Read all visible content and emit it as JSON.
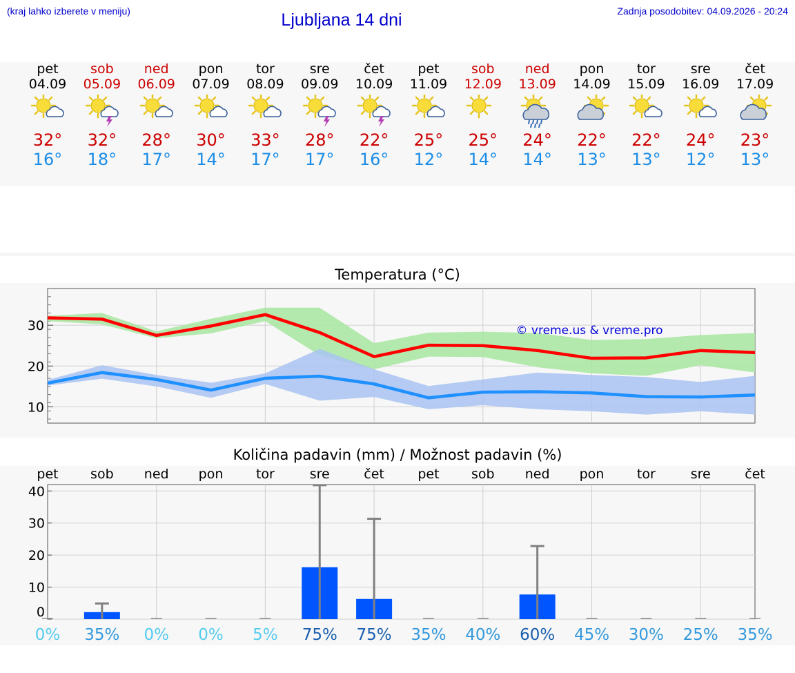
{
  "header": {
    "menu_hint": "(kraj lahko izberete v meniju)",
    "title": "Ljubljana 14 dni",
    "last_update": "Zadnja posodobitev: 04.09.2026 - 20:24"
  },
  "colors": {
    "weekday": "#000000",
    "weekend": "#cc0000",
    "tmax": "#cc0000",
    "tmin": "#1a8ce6",
    "max_line": "#ff0000",
    "min_line": "#1e90ff",
    "max_band": "#a8e6a0",
    "min_band": "#a9c3f2",
    "precip_bar": "#0055ff",
    "error_bar": "#808080"
  },
  "days": [
    {
      "name": "pet",
      "date": "04.09",
      "weekend": false,
      "icon": "sun-cloud-icon",
      "tmax": "32°",
      "tmin": "16°"
    },
    {
      "name": "sob",
      "date": "05.09",
      "weekend": true,
      "icon": "sun-cloud-lightning-icon",
      "tmax": "32°",
      "tmin": "18°"
    },
    {
      "name": "ned",
      "date": "06.09",
      "weekend": true,
      "icon": "sun-cloud-icon",
      "tmax": "28°",
      "tmin": "17°"
    },
    {
      "name": "pon",
      "date": "07.09",
      "weekend": false,
      "icon": "sun-cloud-icon",
      "tmax": "30°",
      "tmin": "14°"
    },
    {
      "name": "tor",
      "date": "08.09",
      "weekend": false,
      "icon": "sun-cloud-icon",
      "tmax": "33°",
      "tmin": "17°"
    },
    {
      "name": "sre",
      "date": "09.09",
      "weekend": false,
      "icon": "sun-cloud-lightning-icon",
      "tmax": "28°",
      "tmin": "17°"
    },
    {
      "name": "čet",
      "date": "10.09",
      "weekend": false,
      "icon": "sun-cloud-lightning-icon",
      "tmax": "22°",
      "tmin": "16°"
    },
    {
      "name": "pet",
      "date": "11.09",
      "weekend": false,
      "icon": "sun-cloud-icon",
      "tmax": "25°",
      "tmin": "12°"
    },
    {
      "name": "sob",
      "date": "12.09",
      "weekend": true,
      "icon": "sun-icon",
      "tmax": "25°",
      "tmin": "14°"
    },
    {
      "name": "ned",
      "date": "13.09",
      "weekend": true,
      "icon": "sun-cloud-rain-icon",
      "tmax": "24°",
      "tmin": "14°"
    },
    {
      "name": "pon",
      "date": "14.09",
      "weekend": false,
      "icon": "cloud-sun-icon",
      "tmax": "22°",
      "tmin": "13°"
    },
    {
      "name": "tor",
      "date": "15.09",
      "weekend": false,
      "icon": "sun-cloud-icon",
      "tmax": "22°",
      "tmin": "13°"
    },
    {
      "name": "sre",
      "date": "16.09",
      "weekend": false,
      "icon": "sun-cloud-icon",
      "tmax": "24°",
      "tmin": "12°"
    },
    {
      "name": "čet",
      "date": "17.09",
      "weekend": false,
      "icon": "cloud-sun-icon",
      "tmax": "23°",
      "tmin": "13°"
    }
  ],
  "chart_data": [
    {
      "type": "line",
      "title": "Temperatura (°C)",
      "watermark": "© vreme.us & vreme.pro",
      "x": [
        "04.09",
        "05.09",
        "06.09",
        "07.09",
        "08.09",
        "09.09",
        "10.09",
        "11.09",
        "12.09",
        "13.09",
        "14.09",
        "15.09",
        "16.09",
        "17.09"
      ],
      "ylim": [
        6,
        39
      ],
      "yticks": [
        10,
        20,
        30
      ],
      "grid": true,
      "series": [
        {
          "values": [
            31.8,
            31.5,
            27.5,
            29.8,
            32.6,
            28.2,
            22.3,
            25.1,
            25.0,
            23.8,
            21.9,
            22.0,
            23.8,
            23.3
          ]
        },
        {
          "values": [
            15.8,
            18.4,
            16.7,
            14.1,
            17.0,
            17.5,
            15.6,
            12.2,
            13.6,
            13.7,
            13.4,
            12.5,
            12.4,
            12.9
          ]
        }
      ],
      "bands": [
        {
          "low": [
            31.0,
            30.2,
            26.8,
            28.0,
            31.0,
            22.6,
            19.2,
            22.3,
            22.2,
            19.7,
            18.2,
            17.6,
            20.2,
            18.4
          ],
          "high": [
            32.3,
            33.0,
            28.5,
            31.6,
            34.3,
            34.3,
            25.6,
            28.2,
            28.4,
            28.1,
            26.4,
            26.6,
            27.6,
            28.1
          ]
        },
        {
          "low": [
            15.2,
            16.9,
            15.0,
            12.2,
            15.6,
            11.5,
            12.4,
            9.4,
            10.4,
            9.4,
            8.9,
            8.1,
            8.9,
            8.1
          ],
          "high": [
            16.6,
            20.2,
            17.8,
            15.9,
            18.2,
            24.2,
            19.2,
            15.1,
            16.7,
            18.4,
            17.8,
            17.3,
            16.1,
            17.6
          ]
        }
      ]
    },
    {
      "type": "bar",
      "title": "Količina padavin (mm) / Možnost padavin (%)",
      "categories": [
        "pet",
        "sob",
        "ned",
        "pon",
        "tor",
        "sre",
        "čet",
        "pet",
        "sob",
        "ned",
        "pon",
        "tor",
        "sre",
        "čet"
      ],
      "ylim": [
        0,
        42
      ],
      "ytick_values": [
        0,
        10,
        20,
        30,
        40
      ],
      "ytick_labels": [
        "0",
        "10",
        "20",
        "30",
        "40"
      ],
      "values": [
        0,
        2.2,
        0,
        0,
        0,
        16.2,
        6.3,
        0,
        0,
        7.7,
        0,
        0,
        0,
        0
      ],
      "error_high": [
        0,
        4.9,
        0,
        0,
        0,
        41.8,
        31.3,
        0,
        0,
        22.8,
        0,
        0,
        0,
        0
      ],
      "probability": [
        "0%",
        "35%",
        "0%",
        "0%",
        "5%",
        "75%",
        "75%",
        "35%",
        "40%",
        "60%",
        "45%",
        "30%",
        "25%",
        "35%"
      ],
      "probability_colors": [
        "#55ccee",
        "#3399dd",
        "#55ccee",
        "#55ccee",
        "#55ccee",
        "#1a5fb0",
        "#1a5fb0",
        "#3399dd",
        "#3399dd",
        "#1a5fb0",
        "#3399dd",
        "#3399dd",
        "#3399dd",
        "#3399dd"
      ]
    }
  ]
}
